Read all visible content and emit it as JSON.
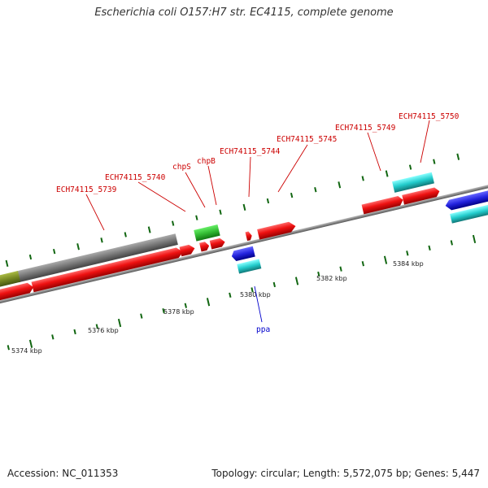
{
  "title": "Escherichia coli O157:H7 str. EC4115, complete genome",
  "footer": {
    "accession": "Accession: NC_011353",
    "summary": "Topology: circular; Length: 5,572,075 bp; Genes: 5,447"
  },
  "colors": {
    "cds": "#ee1111",
    "cds_gene": "#33bb33",
    "rna": "#2222dd",
    "misc_cyan": "#22cccc",
    "olive": "#778822",
    "gray": "#777777",
    "label_red": "#cc0000",
    "label_blue": "#0000cc",
    "tick": "#116611"
  },
  "ticks": [
    {
      "label": "5374 kbp"
    },
    {
      "label": "5376 kbp"
    },
    {
      "label": "5378 kbp"
    },
    {
      "label": "5380 kbp"
    },
    {
      "label": "5382 kbp"
    },
    {
      "label": "5384 kbp"
    }
  ],
  "gene_labels": [
    {
      "text": "ECH74115_5739",
      "color": "label_red"
    },
    {
      "text": "ECH74115_5740",
      "color": "label_red"
    },
    {
      "text": "chpS",
      "color": "label_red"
    },
    {
      "text": "chpB",
      "color": "label_red"
    },
    {
      "text": "ECH74115_5744",
      "color": "label_red"
    },
    {
      "text": "ECH74115_5745",
      "color": "label_red"
    },
    {
      "text": "ECH74115_5749",
      "color": "label_red"
    },
    {
      "text": "ECH74115_5750",
      "color": "label_red"
    },
    {
      "text": "ppa",
      "color": "label_blue"
    }
  ]
}
